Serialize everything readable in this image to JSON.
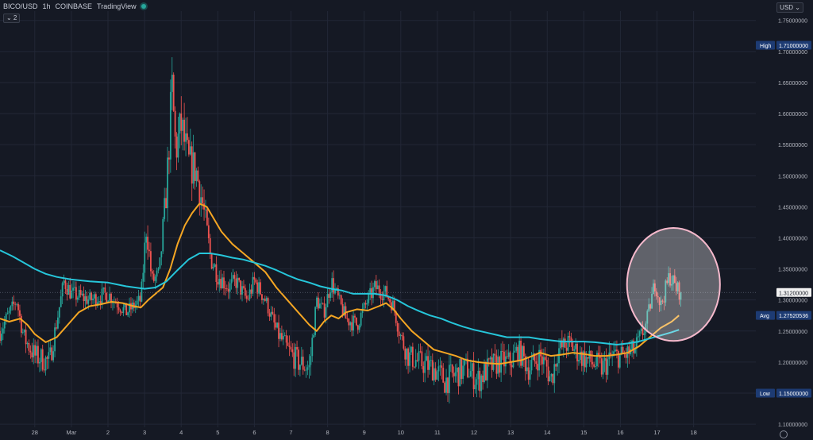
{
  "header": {
    "symbol": "BICO/USD",
    "interval": "1h",
    "exchange": "COINBASE",
    "source": "TradingView",
    "indicator_toggle": "⌄ 2",
    "currency": "USD ⌄"
  },
  "colors": {
    "background": "#151924",
    "grid": "#222736",
    "up": "#26a69a",
    "down": "#ef5350",
    "ma_fast": "#f5a623",
    "ma_slow": "#26c6da",
    "label_bg": "#1d3b73",
    "highlight_circle": "#f6b9cc"
  },
  "chart_data": {
    "type": "candlestick",
    "title": "BICO/USD · 1h · COINBASE",
    "y_axis": {
      "ticks": [
        "1.75000000",
        "1.70000000",
        "1.65000000",
        "1.60000000",
        "1.55000000",
        "1.50000000",
        "1.45000000",
        "1.40000000",
        "1.35000000",
        "1.30000000",
        "1.25000000",
        "1.20000000",
        "1.15000000",
        "1.10000000"
      ],
      "ylim": [
        1.095,
        1.765
      ],
      "side": "right"
    },
    "x_axis": {
      "ticks": [
        {
          "label": "28",
          "x": 0
        },
        {
          "label": "Mar",
          "x": 1
        },
        {
          "label": "2",
          "x": 2
        },
        {
          "label": "3",
          "x": 3
        },
        {
          "label": "4",
          "x": 4
        },
        {
          "label": "5",
          "x": 5
        },
        {
          "label": "6",
          "x": 6
        },
        {
          "label": "7",
          "x": 7
        },
        {
          "label": "8",
          "x": 8
        },
        {
          "label": "9",
          "x": 9
        },
        {
          "label": "10",
          "x": 10
        },
        {
          "label": "11",
          "x": 11
        },
        {
          "label": "12",
          "x": 12
        },
        {
          "label": "13",
          "x": 13
        },
        {
          "label": "14",
          "x": 14
        },
        {
          "label": "15",
          "x": 15
        },
        {
          "label": "16",
          "x": 16
        },
        {
          "label": "17",
          "x": 17
        },
        {
          "label": "18",
          "x": 18
        }
      ],
      "xlim": [
        -0.95,
        19.7
      ]
    },
    "price_labels": [
      {
        "name": "High",
        "value": "1.71000000",
        "level": 1.71
      },
      {
        "name": "",
        "value": "1.31200000",
        "level": 1.312
      },
      {
        "name": "Avg",
        "value": "1.27520536",
        "level": 1.2752
      },
      {
        "name": "Low",
        "value": "1.15000000",
        "level": 1.15
      }
    ],
    "series": [
      {
        "kind": "ma",
        "color": "#f5a623",
        "points": [
          [
            -0.95,
            1.27
          ],
          [
            -0.7,
            1.265
          ],
          [
            -0.4,
            1.27
          ],
          [
            -0.2,
            1.26
          ],
          [
            0.0,
            1.245
          ],
          [
            0.3,
            1.232
          ],
          [
            0.6,
            1.24
          ],
          [
            0.9,
            1.26
          ],
          [
            1.2,
            1.28
          ],
          [
            1.5,
            1.29
          ],
          [
            1.8,
            1.293
          ],
          [
            2.1,
            1.297
          ],
          [
            2.4,
            1.295
          ],
          [
            2.7,
            1.29
          ],
          [
            2.9,
            1.288
          ],
          [
            3.1,
            1.3
          ],
          [
            3.3,
            1.31
          ],
          [
            3.5,
            1.32
          ],
          [
            3.7,
            1.35
          ],
          [
            3.9,
            1.39
          ],
          [
            4.1,
            1.42
          ],
          [
            4.3,
            1.44
          ],
          [
            4.5,
            1.455
          ],
          [
            4.7,
            1.45
          ],
          [
            4.9,
            1.43
          ],
          [
            5.1,
            1.41
          ],
          [
            5.4,
            1.39
          ],
          [
            5.7,
            1.375
          ],
          [
            6.0,
            1.36
          ],
          [
            6.3,
            1.345
          ],
          [
            6.6,
            1.32
          ],
          [
            6.9,
            1.3
          ],
          [
            7.2,
            1.28
          ],
          [
            7.5,
            1.26
          ],
          [
            7.7,
            1.25
          ],
          [
            7.9,
            1.265
          ],
          [
            8.1,
            1.275
          ],
          [
            8.3,
            1.27
          ],
          [
            8.5,
            1.28
          ],
          [
            8.8,
            1.285
          ],
          [
            9.1,
            1.283
          ],
          [
            9.4,
            1.29
          ],
          [
            9.6,
            1.295
          ],
          [
            9.8,
            1.285
          ],
          [
            10.0,
            1.27
          ],
          [
            10.3,
            1.25
          ],
          [
            10.6,
            1.235
          ],
          [
            10.9,
            1.22
          ],
          [
            11.2,
            1.215
          ],
          [
            11.5,
            1.21
          ],
          [
            11.8,
            1.203
          ],
          [
            12.1,
            1.2
          ],
          [
            12.4,
            1.198
          ],
          [
            12.7,
            1.197
          ],
          [
            13.0,
            1.2
          ],
          [
            13.3,
            1.203
          ],
          [
            13.6,
            1.21
          ],
          [
            13.8,
            1.215
          ],
          [
            14.1,
            1.21
          ],
          [
            14.4,
            1.212
          ],
          [
            14.7,
            1.215
          ],
          [
            15.0,
            1.213
          ],
          [
            15.3,
            1.21
          ],
          [
            15.6,
            1.21
          ],
          [
            15.9,
            1.212
          ],
          [
            16.2,
            1.215
          ],
          [
            16.5,
            1.225
          ],
          [
            16.8,
            1.24
          ],
          [
            17.1,
            1.255
          ],
          [
            17.4,
            1.265
          ],
          [
            17.6,
            1.275
          ]
        ]
      },
      {
        "kind": "ma",
        "color": "#26c6da",
        "points": [
          [
            -0.95,
            1.38
          ],
          [
            -0.6,
            1.37
          ],
          [
            -0.3,
            1.36
          ],
          [
            0.0,
            1.35
          ],
          [
            0.3,
            1.342
          ],
          [
            0.6,
            1.337
          ],
          [
            1.0,
            1.333
          ],
          [
            1.5,
            1.33
          ],
          [
            2.0,
            1.328
          ],
          [
            2.5,
            1.322
          ],
          [
            3.0,
            1.318
          ],
          [
            3.3,
            1.32
          ],
          [
            3.6,
            1.33
          ],
          [
            3.9,
            1.348
          ],
          [
            4.2,
            1.365
          ],
          [
            4.5,
            1.375
          ],
          [
            4.8,
            1.375
          ],
          [
            5.1,
            1.372
          ],
          [
            5.4,
            1.368
          ],
          [
            5.7,
            1.365
          ],
          [
            6.0,
            1.36
          ],
          [
            6.3,
            1.355
          ],
          [
            6.6,
            1.348
          ],
          [
            6.9,
            1.34
          ],
          [
            7.2,
            1.333
          ],
          [
            7.5,
            1.328
          ],
          [
            7.8,
            1.322
          ],
          [
            8.1,
            1.318
          ],
          [
            8.4,
            1.315
          ],
          [
            8.7,
            1.31
          ],
          [
            9.0,
            1.31
          ],
          [
            9.3,
            1.31
          ],
          [
            9.6,
            1.307
          ],
          [
            9.9,
            1.3
          ],
          [
            10.2,
            1.29
          ],
          [
            10.5,
            1.282
          ],
          [
            10.8,
            1.275
          ],
          [
            11.1,
            1.27
          ],
          [
            11.4,
            1.263
          ],
          [
            11.7,
            1.257
          ],
          [
            12.0,
            1.252
          ],
          [
            12.3,
            1.248
          ],
          [
            12.6,
            1.244
          ],
          [
            12.9,
            1.24
          ],
          [
            13.2,
            1.24
          ],
          [
            13.5,
            1.24
          ],
          [
            13.8,
            1.237
          ],
          [
            14.1,
            1.235
          ],
          [
            14.4,
            1.233
          ],
          [
            14.7,
            1.233
          ],
          [
            15.0,
            1.233
          ],
          [
            15.3,
            1.232
          ],
          [
            15.6,
            1.23
          ],
          [
            15.9,
            1.228
          ],
          [
            16.2,
            1.23
          ],
          [
            16.5,
            1.233
          ],
          [
            16.8,
            1.238
          ],
          [
            17.1,
            1.243
          ],
          [
            17.4,
            1.248
          ],
          [
            17.6,
            1.252
          ]
        ]
      }
    ],
    "candles": {
      "x_start": -0.95,
      "x_end": 17.65,
      "count": 448,
      "anchors": [
        [
          -0.95,
          1.25
        ],
        [
          -0.5,
          1.3
        ],
        [
          -0.3,
          1.24
        ],
        [
          0.0,
          1.21
        ],
        [
          0.4,
          1.2
        ],
        [
          0.8,
          1.33
        ],
        [
          1.0,
          1.31
        ],
        [
          1.5,
          1.3
        ],
        [
          2.0,
          1.31
        ],
        [
          2.5,
          1.28
        ],
        [
          2.9,
          1.3
        ],
        [
          3.05,
          1.42
        ],
        [
          3.2,
          1.33
        ],
        [
          3.4,
          1.34
        ],
        [
          3.6,
          1.48
        ],
        [
          3.75,
          1.64
        ],
        [
          3.85,
          1.54
        ],
        [
          4.0,
          1.58
        ],
        [
          4.2,
          1.52
        ],
        [
          4.4,
          1.51
        ],
        [
          4.6,
          1.45
        ],
        [
          4.8,
          1.37
        ],
        [
          5.0,
          1.34
        ],
        [
          5.3,
          1.32
        ],
        [
          5.5,
          1.33
        ],
        [
          5.8,
          1.3
        ],
        [
          6.0,
          1.33
        ],
        [
          6.3,
          1.3
        ],
        [
          6.6,
          1.25
        ],
        [
          6.9,
          1.22
        ],
        [
          7.2,
          1.2
        ],
        [
          7.5,
          1.19
        ],
        [
          7.7,
          1.3
        ],
        [
          7.9,
          1.28
        ],
        [
          8.1,
          1.33
        ],
        [
          8.3,
          1.3
        ],
        [
          8.5,
          1.27
        ],
        [
          8.8,
          1.26
        ],
        [
          9.1,
          1.3
        ],
        [
          9.3,
          1.32
        ],
        [
          9.6,
          1.31
        ],
        [
          9.8,
          1.29
        ],
        [
          10.0,
          1.24
        ],
        [
          10.2,
          1.21
        ],
        [
          10.5,
          1.2
        ],
        [
          10.9,
          1.19
        ],
        [
          11.2,
          1.17
        ],
        [
          11.5,
          1.18
        ],
        [
          11.8,
          1.19
        ],
        [
          12.1,
          1.17
        ],
        [
          12.4,
          1.19
        ],
        [
          12.7,
          1.2
        ],
        [
          13.0,
          1.2
        ],
        [
          13.2,
          1.22
        ],
        [
          13.5,
          1.19
        ],
        [
          13.8,
          1.21
        ],
        [
          14.0,
          1.19
        ],
        [
          14.1,
          1.17
        ],
        [
          14.3,
          1.22
        ],
        [
          14.6,
          1.23
        ],
        [
          14.9,
          1.21
        ],
        [
          15.2,
          1.2
        ],
        [
          15.5,
          1.19
        ],
        [
          15.8,
          1.21
        ],
        [
          16.1,
          1.21
        ],
        [
          16.4,
          1.22
        ],
        [
          16.7,
          1.26
        ],
        [
          16.95,
          1.33
        ],
        [
          17.1,
          1.29
        ],
        [
          17.35,
          1.34
        ],
        [
          17.5,
          1.32
        ],
        [
          17.65,
          1.312
        ]
      ]
    },
    "highlight": {
      "center": [
        17.45,
        1.325
      ],
      "radius_x": 1.27,
      "radius_y": 0.091
    }
  }
}
